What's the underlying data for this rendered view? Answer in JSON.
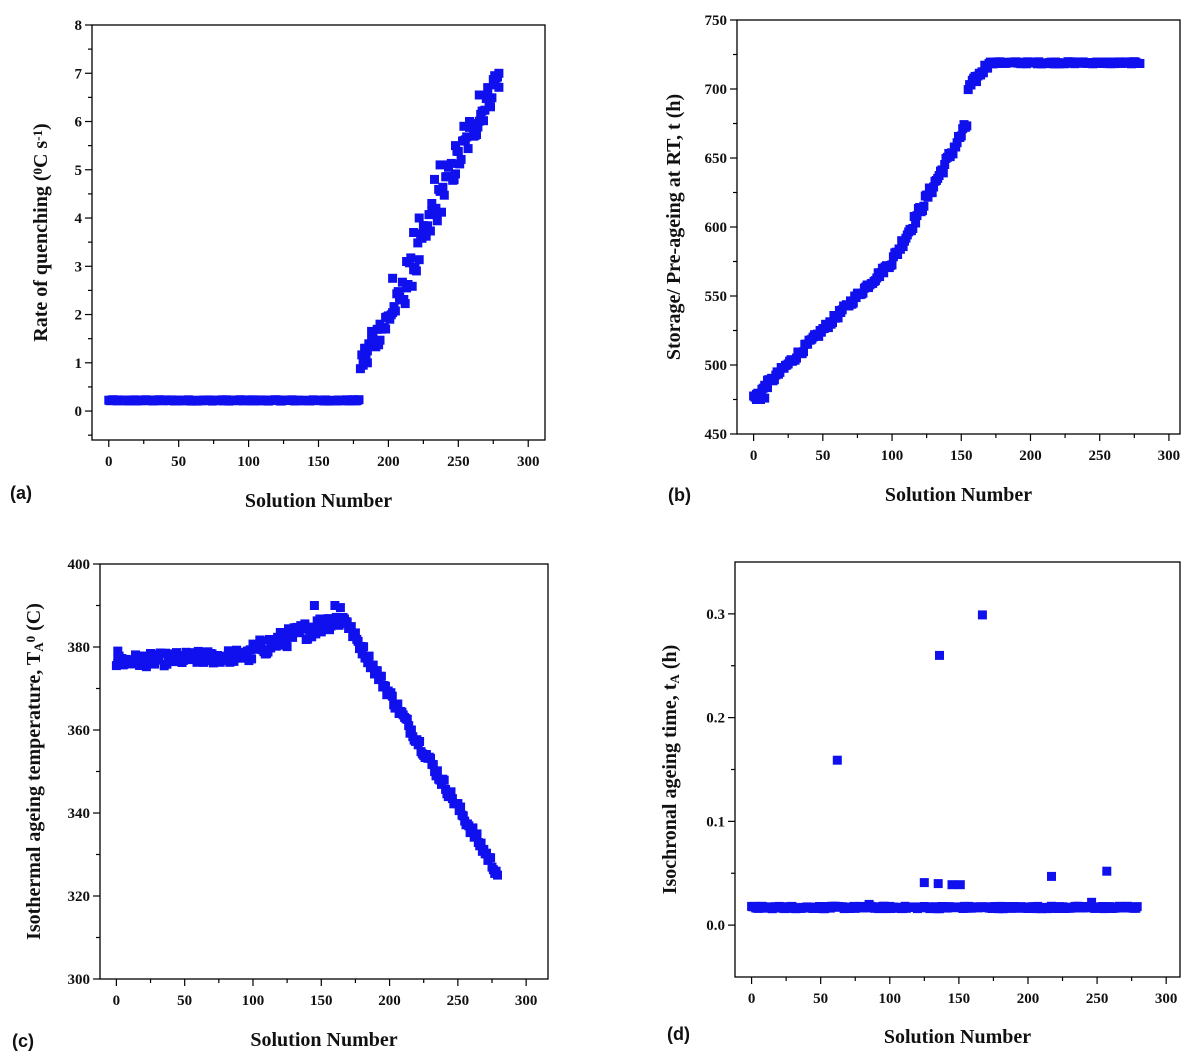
{
  "chart_data": [
    {
      "panel": "(a)",
      "type": "scatter",
      "xlabel": "Solution Number",
      "ylabel": {
        "main": "Rate of quenching (",
        "sup": "0",
        "mid": "C s",
        "sup2": "-1",
        "end": ")"
      },
      "xlim": [
        -12,
        312
      ],
      "ylim": [
        -0.6,
        8
      ],
      "xticks": [
        0,
        50,
        100,
        150,
        200,
        250,
        300
      ],
      "yticks": [
        0,
        1,
        2,
        3,
        4,
        5,
        6,
        7,
        8
      ],
      "marker_color": "#1010ee",
      "segments": [
        {
          "x0": 0,
          "x1": 180,
          "y0": 0.22,
          "y1": 0.22,
          "noise": 0.015
        },
        {
          "x0": 180,
          "x1": 210,
          "y0": 1.0,
          "y1": 2.4,
          "noise": 0.25
        },
        {
          "x0": 210,
          "x1": 240,
          "y0": 2.4,
          "y1": 4.6,
          "noise": 0.35
        },
        {
          "x0": 240,
          "x1": 280,
          "y0": 4.6,
          "y1": 7.0,
          "noise": 0.3
        }
      ],
      "points": [
        [
          182,
          0.95
        ],
        [
          185,
          1.0
        ],
        [
          184,
          1.3
        ],
        [
          188,
          1.65
        ],
        [
          194,
          1.8
        ],
        [
          198,
          1.7
        ],
        [
          203,
          2.75
        ],
        [
          208,
          2.35
        ],
        [
          213,
          3.1
        ],
        [
          218,
          3.7
        ],
        [
          222,
          4.0
        ],
        [
          231,
          4.3
        ],
        [
          233,
          4.8
        ],
        [
          237,
          5.1
        ],
        [
          243,
          5.1
        ],
        [
          248,
          5.5
        ],
        [
          254,
          5.9
        ],
        [
          258,
          6.0
        ],
        [
          265,
          6.55
        ],
        [
          271,
          6.55
        ],
        [
          276,
          6.95
        ],
        [
          279,
          7.0
        ]
      ]
    },
    {
      "panel": "(b)",
      "type": "scatter",
      "xlabel": "Solution Number",
      "ylabel": {
        "main": "Storage/ Pre-ageing at RT, t (h)"
      },
      "xlim": [
        -12,
        308
      ],
      "ylim": [
        450,
        750
      ],
      "xticks": [
        0,
        50,
        100,
        150,
        200,
        250,
        300
      ],
      "yticks": [
        450,
        500,
        550,
        600,
        650,
        700,
        750
      ],
      "marker_color": "#1010ee",
      "segments": [
        {
          "x0": 0,
          "x1": 100,
          "y0": 476,
          "y1": 575,
          "noise": 2.5
        },
        {
          "x0": 100,
          "x1": 155,
          "y0": 575,
          "y1": 676,
          "noise": 4
        },
        {
          "x0": 155,
          "x1": 170,
          "y0": 700,
          "y1": 719,
          "noise": 3
        },
        {
          "x0": 170,
          "x1": 280,
          "y0": 719,
          "y1": 719,
          "noise": 0.8
        }
      ],
      "points": [
        [
          2,
          475
        ],
        [
          5,
          475
        ],
        [
          8,
          476
        ],
        [
          10,
          489
        ],
        [
          14,
          490
        ],
        [
          20,
          498
        ]
      ]
    },
    {
      "panel": "(c)",
      "type": "scatter",
      "xlabel": "Solution Number",
      "ylabel": {
        "main": "Isothermal ageing temperature, T",
        "sub": "A",
        "mid": " (",
        "sup": "0",
        "end": "C)"
      },
      "xlim": [
        -12,
        316
      ],
      "ylim": [
        300,
        400
      ],
      "xticks": [
        0,
        50,
        100,
        150,
        200,
        250,
        300
      ],
      "yticks": [
        300,
        320,
        340,
        360,
        380,
        400
      ],
      "marker_color": "#1010ee",
      "segments": [
        {
          "x0": 0,
          "x1": 100,
          "y0": 376.5,
          "y1": 378,
          "noise": 1.6
        },
        {
          "x0": 100,
          "x1": 155,
          "y0": 379,
          "y1": 386,
          "noise": 2.2
        },
        {
          "x0": 155,
          "x1": 170,
          "y0": 386,
          "y1": 387,
          "noise": 2
        },
        {
          "x0": 170,
          "x1": 280,
          "y0": 385,
          "y1": 325,
          "noise": 1.3
        }
      ],
      "points": [
        [
          1,
          379
        ],
        [
          145,
          390
        ],
        [
          160,
          390
        ],
        [
          164,
          389.5
        ],
        [
          1,
          377
        ],
        [
          3,
          376
        ]
      ]
    },
    {
      "panel": "(d)",
      "type": "scatter",
      "xlabel": "Solution Number",
      "ylabel": {
        "main": "Isochronal ageing time, t",
        "sub": "A",
        "end": " (h)"
      },
      "xlim": [
        -12,
        310
      ],
      "ylim": [
        -0.05,
        0.35
      ],
      "xticks": [
        0,
        50,
        100,
        150,
        200,
        250,
        300
      ],
      "yticks": [
        0.0,
        0.1,
        0.2,
        0.3
      ],
      "marker_color": "#1010ee",
      "segments": [
        {
          "x0": 0,
          "x1": 280,
          "y0": 0.017,
          "y1": 0.017,
          "noise": 0.0012
        }
      ],
      "points": [
        [
          62,
          0.159
        ],
        [
          136,
          0.26
        ],
        [
          167,
          0.299
        ],
        [
          125,
          0.041
        ],
        [
          135,
          0.04
        ],
        [
          145,
          0.039
        ],
        [
          151,
          0.039
        ],
        [
          217,
          0.047
        ],
        [
          257,
          0.052
        ],
        [
          246,
          0.022
        ],
        [
          85,
          0.02
        ]
      ]
    }
  ]
}
